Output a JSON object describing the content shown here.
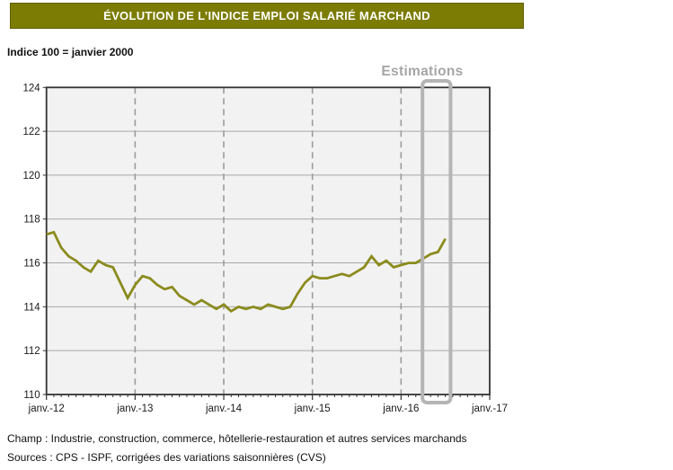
{
  "title": "ÉVOLUTION DE L’INDICE EMPLOI SALARIÉ MARCHAND",
  "subtitle": "Indice 100 = janvier 2000",
  "footer": {
    "champ": "Champ : Industrie, construction, commerce, hôtellerie-restauration et autres services marchands",
    "sources": "Sources : CPS - ISPF, corrigées des variations saisonnières (CVS)"
  },
  "colors": {
    "title_bar_bg": "#7C7C04",
    "title_bar_border": "#5E5E03",
    "title_text": "#FFFFFF",
    "line": "#8B8B1E",
    "plot_bg": "#F2F2F2",
    "gridline": "#A8A8A8",
    "dashed_gridline": "#9C9C9C",
    "axis": "#333333",
    "tick": "#333333",
    "label_text": "#1A1A1A",
    "estimations_box_border": "#B5B5B5",
    "estimations_label": "#A6A6A6"
  },
  "chart_data": {
    "type": "line",
    "title": "ÉVOLUTION DE L’INDICE EMPLOI SALARIÉ MARCHAND",
    "xlabel": "",
    "ylabel": "Indice 100 = janvier 2000",
    "ylim": [
      110,
      124
    ],
    "y_ticks": [
      110,
      112,
      114,
      116,
      118,
      120,
      122,
      124
    ],
    "x_tick_labels": [
      "janv.-12",
      "janv.-13",
      "janv.-14",
      "janv.-15",
      "janv.-16",
      "janv.-17"
    ],
    "months_per_x_tick": 12,
    "x_total_months": 60,
    "grid": "horizontal solid gray, vertical dashed gray at each January, minor monthly ticks on x-axis",
    "legend": "none",
    "annotation": {
      "label": "Estimations",
      "from_month_index": 50.9,
      "to_month_index": 54.7
    },
    "series": [
      {
        "name": "Indice emploi salarié marchand (CVS)",
        "start_label": "janv.-12",
        "frequency": "monthly",
        "values": [
          117.3,
          117.4,
          116.7,
          116.3,
          116.1,
          115.8,
          115.6,
          116.1,
          115.9,
          115.8,
          115.1,
          114.4,
          115.0,
          115.4,
          115.3,
          115.0,
          114.8,
          114.9,
          114.5,
          114.3,
          114.1,
          114.3,
          114.1,
          113.9,
          114.1,
          113.8,
          114.0,
          113.9,
          114.0,
          113.9,
          114.1,
          114.0,
          113.9,
          114.0,
          114.6,
          115.1,
          115.4,
          115.3,
          115.3,
          115.4,
          115.5,
          115.4,
          115.6,
          115.8,
          116.3,
          115.9,
          116.1,
          115.8,
          115.9,
          116.0,
          116.0,
          116.2,
          116.4,
          116.5,
          117.1
        ]
      }
    ]
  }
}
